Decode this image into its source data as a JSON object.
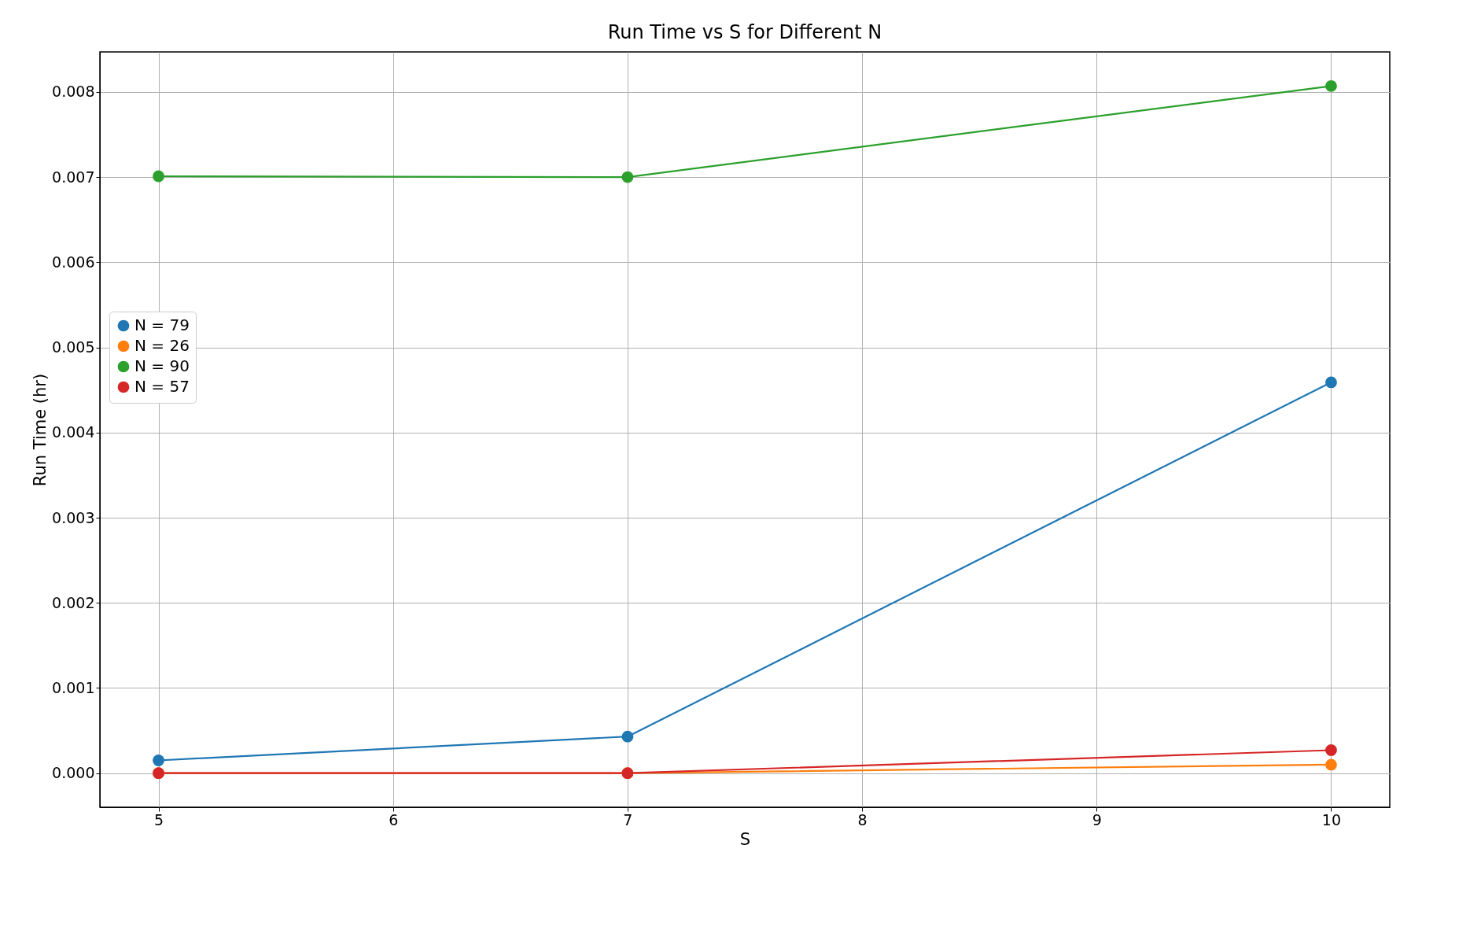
{
  "chart_data": {
    "type": "line",
    "title": "Run Time vs S for Different N",
    "xlabel": "S",
    "ylabel": "Run Time (hr)",
    "x": [
      5,
      7,
      10
    ],
    "series": [
      {
        "name": "N = 79",
        "color": "#1f77b4",
        "values": [
          0.00015,
          0.00043,
          0.00459
        ]
      },
      {
        "name": "N = 26",
        "color": "#ff7f0e",
        "values": [
          0,
          0,
          0.0001
        ]
      },
      {
        "name": "N = 90",
        "color": "#2ca02c",
        "values": [
          0.00701,
          0.007,
          0.00807
        ]
      },
      {
        "name": "N = 57",
        "color": "#d62728",
        "values": [
          0,
          0,
          0.00027
        ]
      }
    ],
    "xlim": [
      4.75,
      10.25
    ],
    "xticks": [
      5,
      6,
      7,
      8,
      9,
      10
    ],
    "ylim": [
      -0.0004,
      0.00847
    ],
    "yticks": [
      {
        "value": 0,
        "label": "0.000"
      },
      0.001,
      0.002,
      0.003,
      0.004,
      0.005,
      0.006,
      0.007,
      0.008
    ],
    "grid": true,
    "legend": "center left",
    "marker": "circle",
    "line_style": "solid"
  }
}
